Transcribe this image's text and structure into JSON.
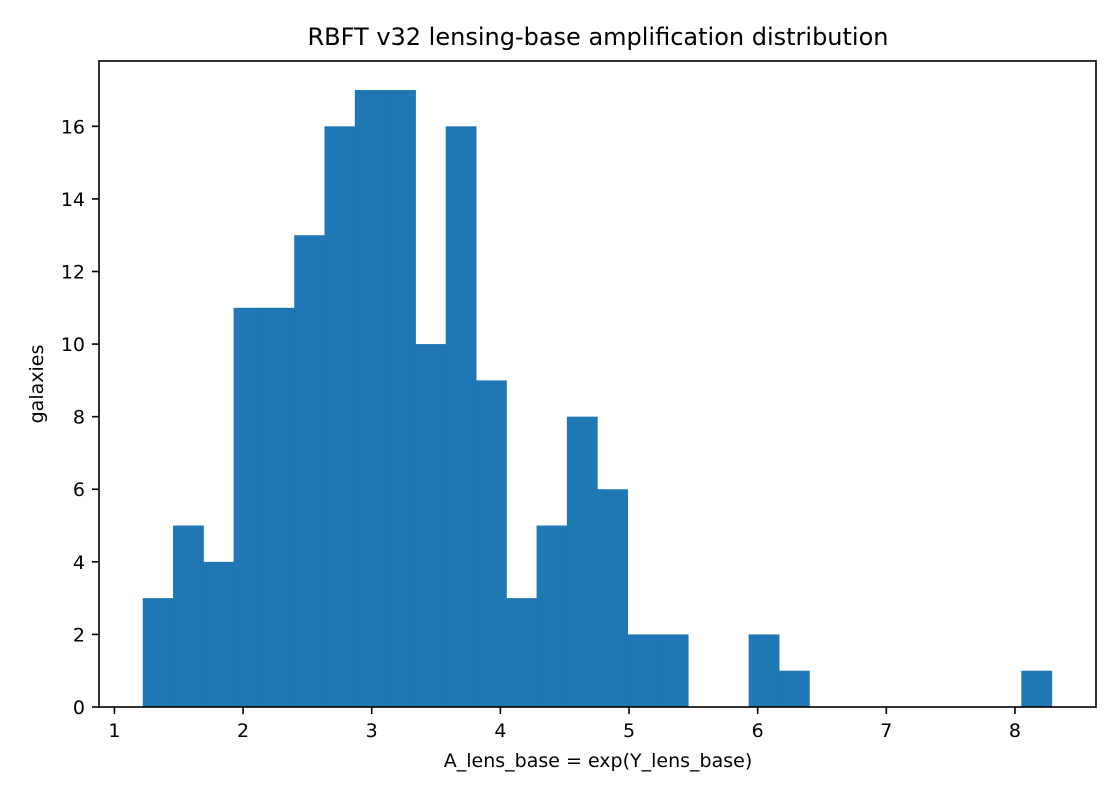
{
  "chart_data": {
    "type": "bar",
    "title": "RBFT v32 lensing-base amplification distribution",
    "xlabel": "A_lens_base = exp(Y_lens_base)",
    "ylabel": "galaxies",
    "xlim": [
      0.88,
      8.63
    ],
    "ylim": [
      0,
      17.8
    ],
    "xticks": [
      1,
      2,
      3,
      4,
      5,
      6,
      7,
      8
    ],
    "yticks": [
      0,
      2,
      4,
      6,
      8,
      10,
      12,
      14,
      16
    ],
    "bin_start": 1.22,
    "bin_width": 0.2355,
    "values": [
      3,
      5,
      4,
      11,
      11,
      13,
      16,
      17,
      17,
      10,
      16,
      9,
      3,
      5,
      8,
      6,
      2,
      2,
      0,
      0,
      2,
      1,
      0,
      0,
      0,
      0,
      0,
      0,
      0,
      1
    ],
    "bar_color": "#1f77b4",
    "grid": false,
    "legend": "none"
  }
}
